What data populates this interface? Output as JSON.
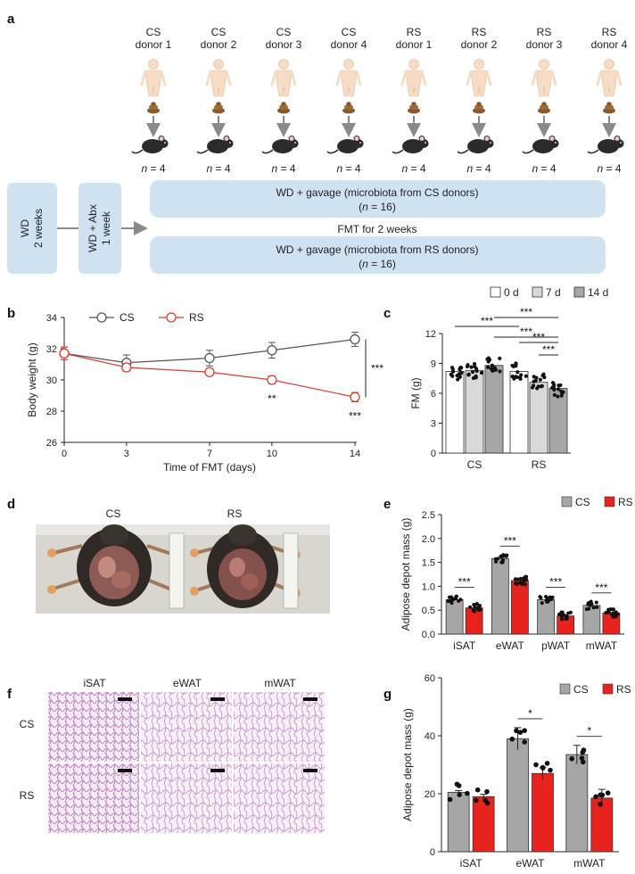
{
  "figure": {
    "panel_labels": [
      "a",
      "b",
      "c",
      "d",
      "e",
      "f",
      "g"
    ]
  },
  "panel_a": {
    "donors": [
      {
        "group": "CS",
        "label": "donor 1",
        "n": "= 4"
      },
      {
        "group": "CS",
        "label": "donor 2",
        "n": "= 4"
      },
      {
        "group": "CS",
        "label": "donor 3",
        "n": "= 4"
      },
      {
        "group": "CS",
        "label": "donor 4",
        "n": "= 4"
      },
      {
        "group": "RS",
        "label": "donor 1",
        "n": "= 4"
      },
      {
        "group": "RS",
        "label": "donor 2",
        "n": "= 4"
      },
      {
        "group": "RS",
        "label": "donor 3",
        "n": "= 4"
      },
      {
        "group": "RS",
        "label": "donor 4",
        "n": "= 4"
      }
    ],
    "n_symbol": "n",
    "step1": {
      "line1": "WD",
      "line2": "2 weeks"
    },
    "step2": {
      "line1": "WD + Abx",
      "line2": "1 week"
    },
    "box_cs": {
      "line1": "WD + gavage (microbiota from CS donors)",
      "line2_pre": "(",
      "n": "n",
      "line2_post": " = 16)"
    },
    "box_rs": {
      "line1": "WD + gavage (microbiota from RS donors)",
      "line2_pre": "(",
      "n": "n",
      "line2_post": " = 16)"
    },
    "fmt_label": "FMT for 2 weeks",
    "colors": {
      "box": "#cfe2f1",
      "human": "#f7dcc4",
      "stool": "#8b5a2b",
      "mouse": "#2b2b2b",
      "arrow": "#8a8a8a"
    }
  },
  "chart_data": [
    {
      "panel": "b",
      "type": "line",
      "x": [
        0,
        3,
        7,
        10,
        14
      ],
      "xlabel": "Time of FMT (days)",
      "ylabel": "Body weight (g)",
      "xlim": [
        0,
        14
      ],
      "ylim": [
        26,
        34
      ],
      "xticks": [
        0,
        3,
        7,
        10,
        14
      ],
      "yticks": [
        26,
        28,
        30,
        32,
        34
      ],
      "legend_position": "top-left",
      "series": [
        {
          "name": "CS",
          "color": "#555555",
          "values": [
            31.7,
            31.1,
            31.4,
            31.9,
            32.6
          ],
          "errors": [
            0.4,
            0.5,
            0.5,
            0.5,
            0.45
          ]
        },
        {
          "name": "RS",
          "color": "#e03a2f",
          "values": [
            31.7,
            30.8,
            30.5,
            30.0,
            28.9
          ],
          "errors": [
            0.4,
            0.25,
            0.2,
            0.25,
            0.3
          ]
        }
      ],
      "annotations": [
        {
          "x": 10,
          "text": "**"
        },
        {
          "x": 14,
          "text": "***"
        },
        {
          "bracket": "CS vs RS",
          "text": "***"
        }
      ]
    },
    {
      "panel": "c",
      "type": "bar",
      "categories": [
        "CS",
        "RS"
      ],
      "ylabel": "FM (g)",
      "ylim": [
        0,
        12
      ],
      "yticks": [
        0,
        3,
        6,
        9,
        12
      ],
      "legend_position": "top",
      "series": [
        {
          "name": "0 d",
          "color": "#ffffff",
          "values": [
            8.2,
            8.2
          ]
        },
        {
          "name": "7 d",
          "color": "#d9d9d9",
          "values": [
            8.3,
            7.1
          ]
        },
        {
          "name": "14 d",
          "color": "#a6a6a6",
          "values": [
            8.8,
            6.5
          ]
        }
      ],
      "significance": [
        "***",
        "***",
        "***",
        "***",
        "***"
      ]
    },
    {
      "panel": "e",
      "type": "bar",
      "categories": [
        "iSAT",
        "eWAT",
        "pWAT",
        "mWAT"
      ],
      "ylabel": "Adipose depot mass (g)",
      "ylim": [
        0,
        2.5
      ],
      "yticks": [
        0,
        0.5,
        1.0,
        1.5,
        2.0,
        2.5
      ],
      "legend_position": "top-right",
      "series": [
        {
          "name": "CS",
          "color": "#a6a6a6",
          "values": [
            0.72,
            1.58,
            0.72,
            0.6
          ]
        },
        {
          "name": "RS",
          "color": "#e8231d",
          "values": [
            0.55,
            1.12,
            0.38,
            0.44
          ]
        }
      ],
      "significance": [
        "***",
        "***",
        "***",
        "***"
      ]
    },
    {
      "panel": "g",
      "type": "bar",
      "categories": [
        "iSAT",
        "eWAT",
        "mWAT"
      ],
      "ylabel": "Adipose depot mass (g)",
      "ylim": [
        0,
        60
      ],
      "yticks": [
        0,
        20,
        40,
        60
      ],
      "legend_position": "top-right",
      "series": [
        {
          "name": "CS",
          "color": "#a6a6a6",
          "values": [
            20.5,
            39,
            33.5
          ],
          "errors": [
            0.6,
            3.8,
            3.2
          ]
        },
        {
          "name": "RS",
          "color": "#e8231d",
          "values": [
            19,
            27,
            18.5
          ],
          "errors": [
            0.8,
            2.0,
            3.0
          ]
        }
      ],
      "significance": [
        "",
        "*",
        "*"
      ]
    }
  ],
  "panel_d": {
    "left_label": "CS",
    "right_label": "RS"
  },
  "panel_f": {
    "columns": [
      "iSAT",
      "eWAT",
      "mWAT"
    ],
    "rows": [
      "CS",
      "RS"
    ]
  }
}
